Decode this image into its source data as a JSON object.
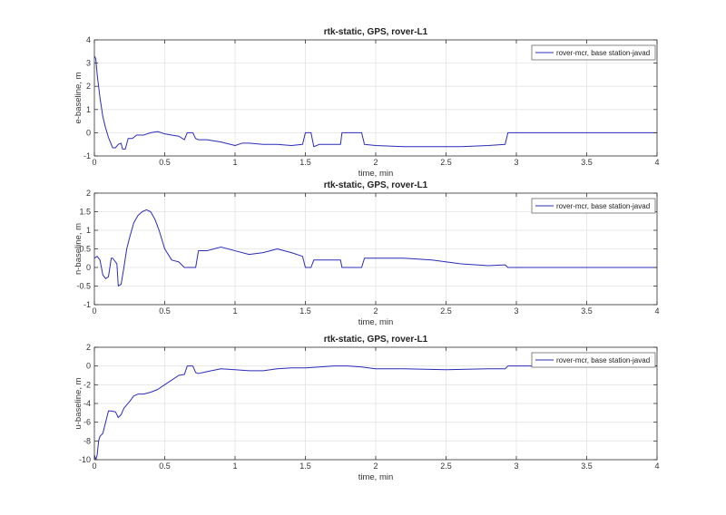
{
  "chart_data": [
    {
      "type": "line",
      "title": "rtk-static, GPS, rover-L1",
      "xlabel": "time, min",
      "ylabel": "e-baseline, m",
      "xlim": [
        0,
        4
      ],
      "ylim": [
        -1,
        4
      ],
      "xticks": [
        "0",
        "0.5",
        "1",
        "1.5",
        "2",
        "2.5",
        "3",
        "3.5",
        "4"
      ],
      "yticks": [
        "-1",
        "0",
        "1",
        "2",
        "3",
        "4"
      ],
      "grid": true,
      "legend_position": "top-right",
      "color": "#2b2bb8",
      "series": [
        {
          "name": "rover-mcr, base station-javad",
          "x": [
            0,
            0.01,
            0.02,
            0.04,
            0.06,
            0.08,
            0.1,
            0.12,
            0.13,
            0.15,
            0.17,
            0.19,
            0.2,
            0.22,
            0.24,
            0.27,
            0.3,
            0.35,
            0.4,
            0.45,
            0.5,
            0.55,
            0.6,
            0.64,
            0.66,
            0.7,
            0.72,
            0.74,
            0.8,
            0.9,
            1.0,
            1.05,
            1.1,
            1.2,
            1.3,
            1.4,
            1.48,
            1.5,
            1.54,
            1.56,
            1.6,
            1.7,
            1.75,
            1.76,
            1.9,
            1.92,
            2.0,
            2.2,
            2.4,
            2.6,
            2.8,
            2.92,
            2.94,
            3.0,
            3.5,
            4.0
          ],
          "y": [
            3.3,
            3.2,
            2.5,
            1.5,
            0.7,
            0.2,
            -0.2,
            -0.5,
            -0.65,
            -0.65,
            -0.5,
            -0.45,
            -0.7,
            -0.7,
            -0.25,
            -0.25,
            -0.1,
            -0.1,
            0.0,
            0.05,
            -0.05,
            -0.1,
            -0.15,
            -0.3,
            0.0,
            0.0,
            -0.25,
            -0.3,
            -0.3,
            -0.4,
            -0.55,
            -0.45,
            -0.45,
            -0.5,
            -0.5,
            -0.55,
            -0.5,
            0.0,
            0.0,
            -0.6,
            -0.5,
            -0.5,
            -0.5,
            0.0,
            0.0,
            -0.5,
            -0.55,
            -0.6,
            -0.6,
            -0.6,
            -0.55,
            -0.5,
            0.0,
            0.0,
            0.0,
            0.0
          ]
        }
      ]
    },
    {
      "type": "line",
      "title": "rtk-static, GPS, rover-L1",
      "xlabel": "time, min",
      "ylabel": "n-baseline, m",
      "xlim": [
        0,
        4
      ],
      "ylim": [
        -1,
        2
      ],
      "xticks": [
        "0",
        "0.5",
        "1",
        "1.5",
        "2",
        "2.5",
        "3",
        "3.5",
        "4"
      ],
      "yticks": [
        "-1",
        "-0.5",
        "0",
        "0.5",
        "1",
        "1.5",
        "2"
      ],
      "grid": true,
      "legend_position": "top-right",
      "color": "#2b2bb8",
      "series": [
        {
          "name": "rover-mcr, base station-javad",
          "x": [
            0,
            0.02,
            0.04,
            0.06,
            0.08,
            0.1,
            0.12,
            0.13,
            0.16,
            0.17,
            0.19,
            0.21,
            0.23,
            0.25,
            0.28,
            0.31,
            0.34,
            0.37,
            0.4,
            0.43,
            0.46,
            0.5,
            0.55,
            0.6,
            0.64,
            0.66,
            0.72,
            0.74,
            0.8,
            0.85,
            0.9,
            1.0,
            1.1,
            1.2,
            1.3,
            1.4,
            1.48,
            1.5,
            1.54,
            1.56,
            1.75,
            1.76,
            1.9,
            1.92,
            2.0,
            2.2,
            2.4,
            2.6,
            2.8,
            2.92,
            2.94,
            3.0,
            3.5,
            4.0
          ],
          "y": [
            0.25,
            0.3,
            0.2,
            -0.2,
            -0.3,
            -0.25,
            0.25,
            0.25,
            0.1,
            -0.5,
            -0.45,
            0.0,
            0.5,
            0.8,
            1.2,
            1.4,
            1.5,
            1.55,
            1.5,
            1.3,
            1.0,
            0.5,
            0.2,
            0.15,
            0.0,
            0.0,
            0.0,
            0.45,
            0.45,
            0.5,
            0.55,
            0.45,
            0.35,
            0.4,
            0.5,
            0.4,
            0.3,
            0.0,
            0.0,
            0.2,
            0.2,
            0.0,
            0.0,
            0.25,
            0.25,
            0.25,
            0.2,
            0.1,
            0.05,
            0.07,
            0.0,
            0.0,
            0.0,
            0.0
          ]
        }
      ]
    },
    {
      "type": "line",
      "title": "rtk-static, GPS, rover-L1",
      "xlabel": "time, min",
      "ylabel": "u-baseline, m",
      "xlim": [
        0,
        4
      ],
      "ylim": [
        -10,
        2
      ],
      "xticks": [
        "0",
        "0.5",
        "1",
        "1.5",
        "2",
        "2.5",
        "3",
        "3.5",
        "4"
      ],
      "yticks": [
        "-10",
        "-8",
        "-6",
        "-4",
        "-2",
        "0",
        "2"
      ],
      "grid": true,
      "legend_position": "top-right",
      "color": "#2b2bb8",
      "series": [
        {
          "name": "rover-mcr, base station-javad",
          "x": [
            0,
            0.01,
            0.02,
            0.03,
            0.04,
            0.06,
            0.08,
            0.1,
            0.12,
            0.15,
            0.17,
            0.19,
            0.21,
            0.25,
            0.28,
            0.31,
            0.35,
            0.4,
            0.45,
            0.5,
            0.55,
            0.6,
            0.64,
            0.66,
            0.7,
            0.72,
            0.74,
            0.8,
            0.9,
            1.0,
            1.1,
            1.2,
            1.3,
            1.4,
            1.5,
            1.6,
            1.7,
            1.8,
            1.9,
            2.0,
            2.2,
            2.5,
            2.8,
            2.92,
            2.94,
            3.0,
            3.5,
            4.0
          ],
          "y": [
            -9.5,
            -10,
            -9.5,
            -8.0,
            -7.5,
            -7.2,
            -6.0,
            -4.8,
            -4.8,
            -4.9,
            -5.5,
            -5.2,
            -4.5,
            -3.8,
            -3.2,
            -3.0,
            -3.0,
            -2.8,
            -2.5,
            -2.0,
            -1.5,
            -1.0,
            -0.9,
            0.0,
            0.0,
            -0.7,
            -0.8,
            -0.6,
            -0.3,
            -0.4,
            -0.5,
            -0.5,
            -0.3,
            -0.2,
            -0.2,
            -0.1,
            0.0,
            0.0,
            -0.1,
            -0.3,
            -0.3,
            -0.4,
            -0.3,
            -0.3,
            0.0,
            0.0,
            0.0,
            0.0
          ]
        }
      ]
    }
  ]
}
